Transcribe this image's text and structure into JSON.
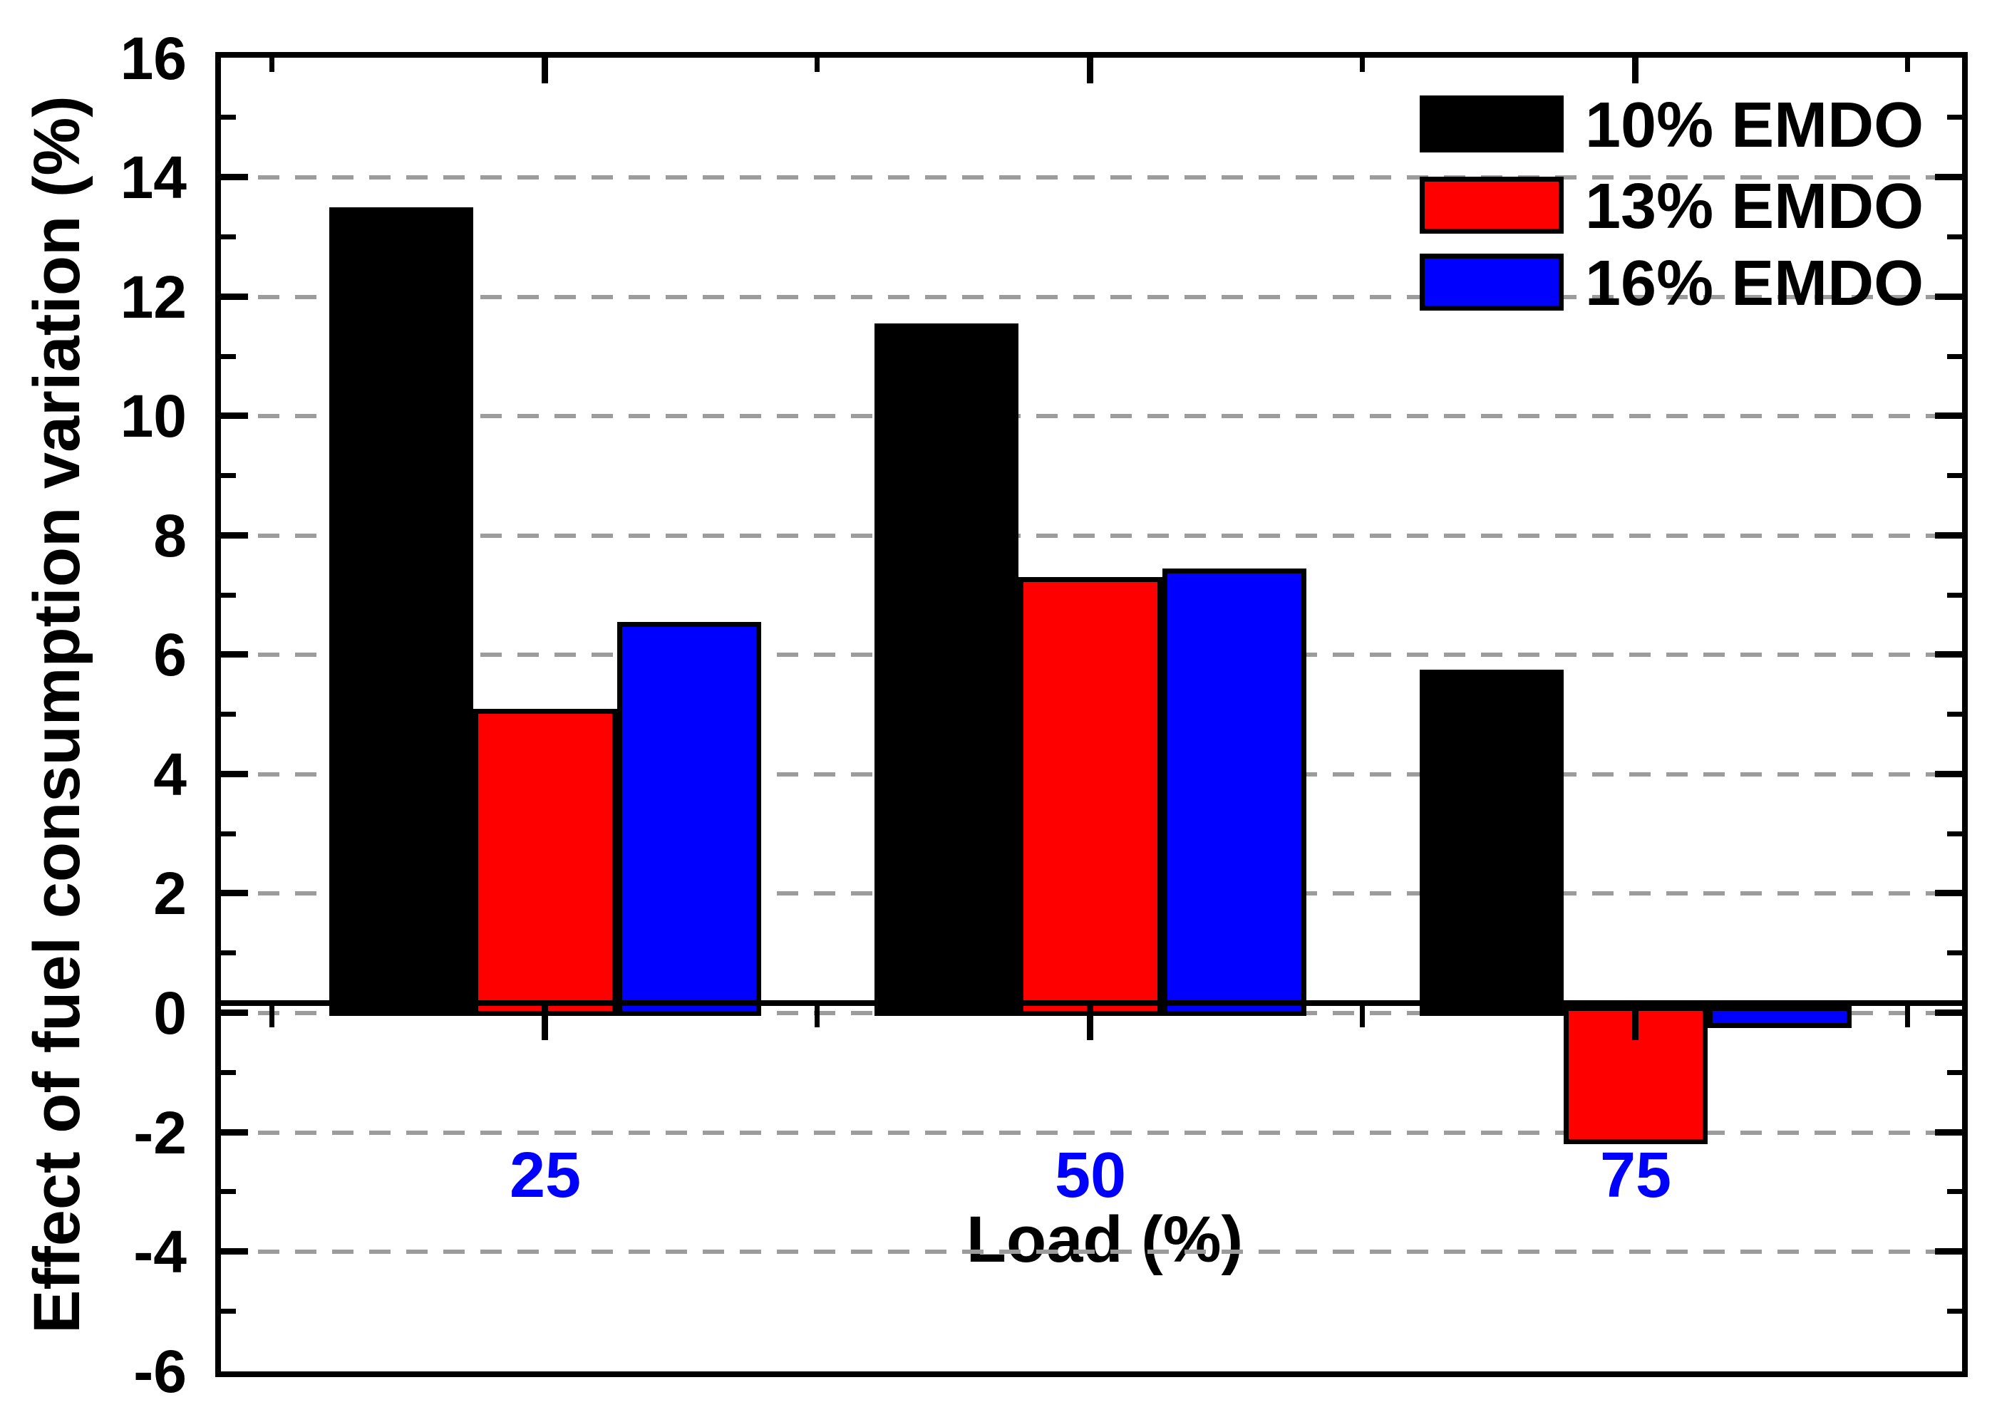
{
  "figure": {
    "background": "#FFFFFF"
  },
  "chart_data": {
    "type": "bar",
    "title": "",
    "categories": [
      "25",
      "50",
      "75"
    ],
    "series": [
      {
        "name": "10% EMDO",
        "color": "#000000",
        "values": [
          13.5,
          11.55,
          5.75
        ]
      },
      {
        "name": "13% EMDO",
        "color": "#FF0000",
        "values": [
          5.1,
          7.3,
          -2.2
        ]
      },
      {
        "name": "16% EMDO",
        "color": "#0000FF",
        "values": [
          6.55,
          7.45,
          -0.25
        ]
      }
    ],
    "xlabel": "Load (%)",
    "ylabel": "Effect of fuel consumption variation (%)",
    "ylim": [
      -6,
      16
    ],
    "y_major_tick_step": 2,
    "y_minor_tick_step": 1,
    "y_tick_labels": [
      "16",
      "14",
      "12",
      "10",
      "8",
      "6",
      "4",
      "2",
      "0",
      "-2",
      "-4",
      "-6"
    ],
    "grid": {
      "show": true,
      "style": "dashed",
      "color": "#9c9c9c",
      "values": [
        14,
        12,
        10,
        8,
        6,
        4,
        2,
        0,
        -2,
        -4
      ]
    },
    "legend": {
      "position": "top-right",
      "entries": [
        "10% EMDO",
        "13% EMDO",
        "16% EMDO"
      ]
    },
    "colors": {
      "axis": "#000000",
      "x_tick_label": "#0000FF",
      "bar_border": "#000000"
    }
  }
}
